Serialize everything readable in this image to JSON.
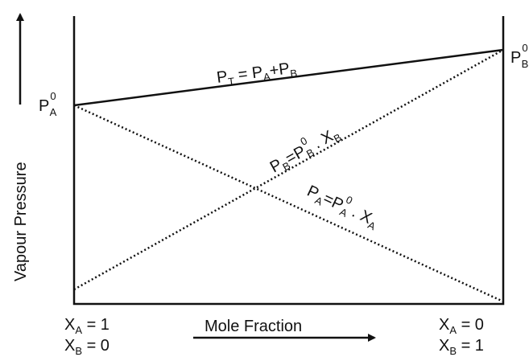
{
  "axes": {
    "y_label": "Vapour Pressure",
    "x_label": "Mole Fraction"
  },
  "left": {
    "pa0": [
      "P",
      "0",
      "A"
    ],
    "xa": [
      "X",
      "A",
      " = 1"
    ],
    "xb": [
      "X",
      "B",
      " = 0"
    ]
  },
  "right": {
    "pb0": [
      "P",
      "0",
      "B"
    ],
    "xa": [
      "X",
      "A",
      " = 0"
    ],
    "xb": [
      "X",
      "B",
      " = 1"
    ]
  },
  "lines": {
    "total": [
      "P",
      "T",
      " = P",
      "A",
      "+P",
      "B"
    ],
    "pb": [
      "P",
      "B",
      "=P",
      "0",
      "B",
      " . X",
      "B"
    ],
    "pa": [
      "P",
      "A",
      "=P",
      "0",
      "A",
      " . X",
      "A"
    ]
  }
}
